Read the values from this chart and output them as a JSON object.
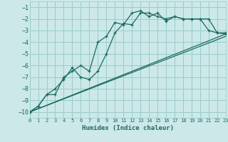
{
  "xlabel": "Humidex (Indice chaleur)",
  "bg_color": "#cce8e8",
  "grid_color": "#99cccc",
  "line_color": "#1a6b60",
  "xlim": [
    0,
    23
  ],
  "ylim": [
    -10.5,
    -0.5
  ],
  "xticks": [
    0,
    1,
    2,
    3,
    4,
    5,
    6,
    7,
    8,
    9,
    10,
    11,
    12,
    13,
    14,
    15,
    16,
    17,
    18,
    19,
    20,
    21,
    22,
    23
  ],
  "yticks": [
    -10,
    -9,
    -8,
    -7,
    -6,
    -5,
    -4,
    -3,
    -2,
    -1
  ],
  "series1_x": [
    0,
    1,
    2,
    3,
    4,
    5,
    6,
    7,
    8,
    9,
    10,
    11,
    12,
    13,
    14,
    15,
    16,
    17,
    18,
    19,
    20,
    21,
    22,
    23
  ],
  "series1_y": [
    -10.0,
    -9.5,
    -8.5,
    -8.0,
    -7.2,
    -6.2,
    -7.0,
    -7.2,
    -6.5,
    -5.0,
    -3.2,
    -2.4,
    -2.5,
    -1.5,
    -1.5,
    -1.8,
    -2.0,
    -1.8,
    -2.0,
    -2.0,
    -2.0,
    -3.0,
    -3.2,
    -3.3
  ],
  "series2_x": [
    0,
    1,
    2,
    3,
    4,
    5,
    6,
    7,
    8,
    9,
    10,
    11,
    12,
    13,
    14,
    15,
    16,
    17,
    18,
    19,
    20,
    21,
    22,
    23
  ],
  "series2_y": [
    -10.0,
    -9.5,
    -8.5,
    -8.5,
    -7.0,
    -6.5,
    -6.0,
    -6.5,
    -4.0,
    -3.5,
    -2.3,
    -2.5,
    -1.5,
    -1.3,
    -1.8,
    -1.5,
    -2.2,
    -1.8,
    -2.0,
    -2.0,
    -2.0,
    -2.0,
    -3.2,
    -3.2
  ],
  "series3_x": [
    0,
    23
  ],
  "series3_y": [
    -10.0,
    -3.3
  ],
  "series4_x": [
    0,
    23
  ],
  "series4_y": [
    -10.0,
    -3.5
  ]
}
